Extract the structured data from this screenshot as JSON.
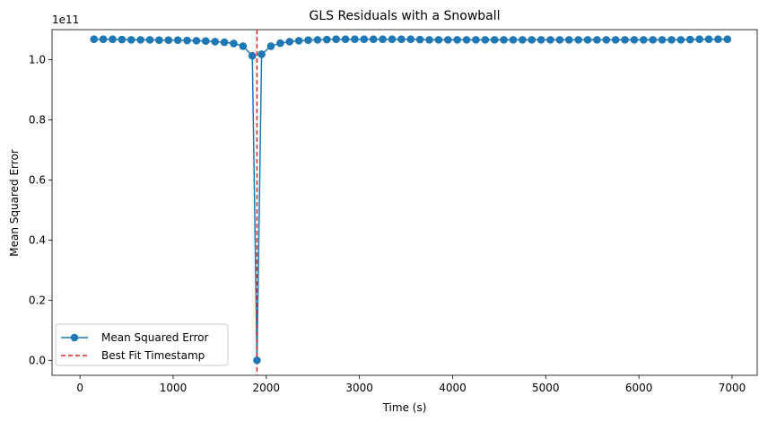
{
  "chart_data": {
    "type": "line",
    "title": "GLS Residuals with a Snowball",
    "xlabel": "Time (s)",
    "ylabel": "Mean Squared Error",
    "y_offset_text": "1e11",
    "xlim": [
      -300,
      7270
    ],
    "ylim": [
      -0.05,
      1.1
    ],
    "y_scale_factor": 100000000000.0,
    "x_ticks": [
      0,
      1000,
      2000,
      3000,
      4000,
      5000,
      6000,
      7000
    ],
    "x_tick_labels": [
      "0",
      "1000",
      "2000",
      "3000",
      "4000",
      "5000",
      "6000",
      "7000"
    ],
    "y_ticks": [
      0.0,
      0.2,
      0.4,
      0.6,
      0.8,
      1.0
    ],
    "y_tick_labels": [
      "0.0",
      "0.2",
      "0.4",
      "0.6",
      "0.8",
      "1.0"
    ],
    "grid": false,
    "legend_position": "lower-left",
    "series": [
      {
        "name": "Mean Squared Error",
        "style": "line-with-circle-markers",
        "color": "#1f77b4",
        "x": [
          150,
          250,
          350,
          450,
          550,
          650,
          750,
          850,
          950,
          1050,
          1150,
          1250,
          1350,
          1450,
          1550,
          1650,
          1750,
          1850,
          1900,
          1950,
          2050,
          2150,
          2250,
          2350,
          2450,
          2550,
          2650,
          2750,
          2850,
          2950,
          3050,
          3150,
          3250,
          3350,
          3450,
          3550,
          3650,
          3750,
          3850,
          3950,
          4050,
          4150,
          4250,
          4350,
          4450,
          4550,
          4650,
          4750,
          4850,
          4950,
          5050,
          5150,
          5250,
          5350,
          5450,
          5550,
          5650,
          5750,
          5850,
          5950,
          6050,
          6150,
          6250,
          6350,
          6450,
          6550,
          6650,
          6750,
          6850,
          6950
        ],
        "y": [
          1.068,
          1.068,
          1.068,
          1.067,
          1.066,
          1.066,
          1.066,
          1.065,
          1.065,
          1.065,
          1.064,
          1.063,
          1.062,
          1.06,
          1.058,
          1.054,
          1.045,
          1.013,
          0.0,
          1.018,
          1.045,
          1.055,
          1.06,
          1.063,
          1.065,
          1.066,
          1.067,
          1.068,
          1.068,
          1.068,
          1.068,
          1.068,
          1.068,
          1.068,
          1.068,
          1.068,
          1.067,
          1.066,
          1.066,
          1.066,
          1.066,
          1.066,
          1.066,
          1.066,
          1.066,
          1.066,
          1.066,
          1.066,
          1.066,
          1.066,
          1.066,
          1.066,
          1.066,
          1.066,
          1.066,
          1.066,
          1.066,
          1.066,
          1.066,
          1.066,
          1.066,
          1.066,
          1.066,
          1.066,
          1.066,
          1.067,
          1.068,
          1.068,
          1.068,
          1.068
        ]
      },
      {
        "name": "Best Fit Timestamp",
        "style": "vertical-dashed-line",
        "color": "#d62728",
        "x": 1900
      }
    ]
  }
}
